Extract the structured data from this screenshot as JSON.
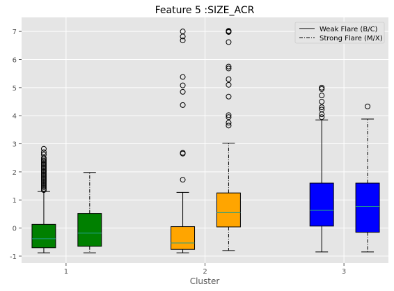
{
  "chart_data": {
    "type": "boxplot",
    "title": "Feature 5 :SIZE_ACR",
    "xlabel": "Cluster",
    "ylabel": "",
    "ylim": [
      -1.25,
      7.5
    ],
    "yticks": [
      -1,
      0,
      1,
      2,
      3,
      4,
      5,
      6,
      7
    ],
    "xlim": [
      0.68,
      3.32
    ],
    "xticks": [
      1,
      2,
      3
    ],
    "grid": true,
    "legend": {
      "placement": "top-right",
      "entries": [
        {
          "label": "Weak Flare (B/C)",
          "linestyle": "solid"
        },
        {
          "label": "Strong Flare (M/X)",
          "linestyle": "dashdot"
        }
      ]
    },
    "colors": {
      "background": "#e5e5e5",
      "grid": "#ffffff",
      "cluster1": "#008000",
      "cluster2": "#ffa500",
      "cluster3": "#0000ff",
      "median": "#1f9e89"
    },
    "boxes": [
      {
        "cluster": 1,
        "series": "Weak Flare (B/C)",
        "x": 0.84,
        "color": "#008000",
        "whisker_low": -0.88,
        "q1": -0.7,
        "median": -0.38,
        "q3": 0.13,
        "whisker_high": 1.3,
        "outliers": [
          1.35,
          1.4,
          1.45,
          1.5,
          1.55,
          1.6,
          1.65,
          1.7,
          1.75,
          1.8,
          1.85,
          1.9,
          1.95,
          2.0,
          2.05,
          2.1,
          2.15,
          2.2,
          2.25,
          2.3,
          2.35,
          2.4,
          2.45,
          2.5,
          2.62,
          2.7,
          2.82
        ]
      },
      {
        "cluster": 1,
        "series": "Strong Flare (M/X)",
        "x": 1.17,
        "color": "#008000",
        "whisker_low": -0.88,
        "q1": -0.65,
        "median": -0.18,
        "q3": 0.52,
        "whisker_high": 1.98,
        "outliers": []
      },
      {
        "cluster": 2,
        "series": "Weak Flare (B/C)",
        "x": 1.84,
        "color": "#ffa500",
        "whisker_low": -0.88,
        "q1": -0.76,
        "median": -0.53,
        "q3": 0.05,
        "whisker_high": 1.27,
        "outliers": [
          1.72,
          2.65,
          2.68,
          4.38,
          4.85,
          5.08,
          5.38,
          6.68,
          6.82,
          7.0
        ]
      },
      {
        "cluster": 2,
        "series": "Strong Flare (M/X)",
        "x": 2.17,
        "color": "#ffa500",
        "whisker_low": -0.8,
        "q1": 0.04,
        "median": 0.55,
        "q3": 1.25,
        "whisker_high": 3.02,
        "outliers": [
          3.65,
          3.75,
          3.95,
          4.02,
          4.68,
          5.1,
          5.3,
          5.68,
          5.75,
          6.62,
          6.98,
          7.0,
          7.02
        ]
      },
      {
        "cluster": 3,
        "series": "Weak Flare (B/C)",
        "x": 2.84,
        "color": "#0000ff",
        "whisker_low": -0.85,
        "q1": 0.07,
        "median": 0.63,
        "q3": 1.6,
        "whisker_high": 3.85,
        "outliers": [
          3.95,
          4.05,
          4.22,
          4.3,
          4.5,
          4.72,
          4.95,
          5.0
        ]
      },
      {
        "cluster": 3,
        "series": "Strong Flare (M/X)",
        "x": 3.17,
        "color": "#0000ff",
        "whisker_low": -0.85,
        "q1": -0.15,
        "median": 0.77,
        "q3": 1.6,
        "whisker_high": 3.88,
        "outliers": [
          4.33
        ]
      }
    ]
  }
}
